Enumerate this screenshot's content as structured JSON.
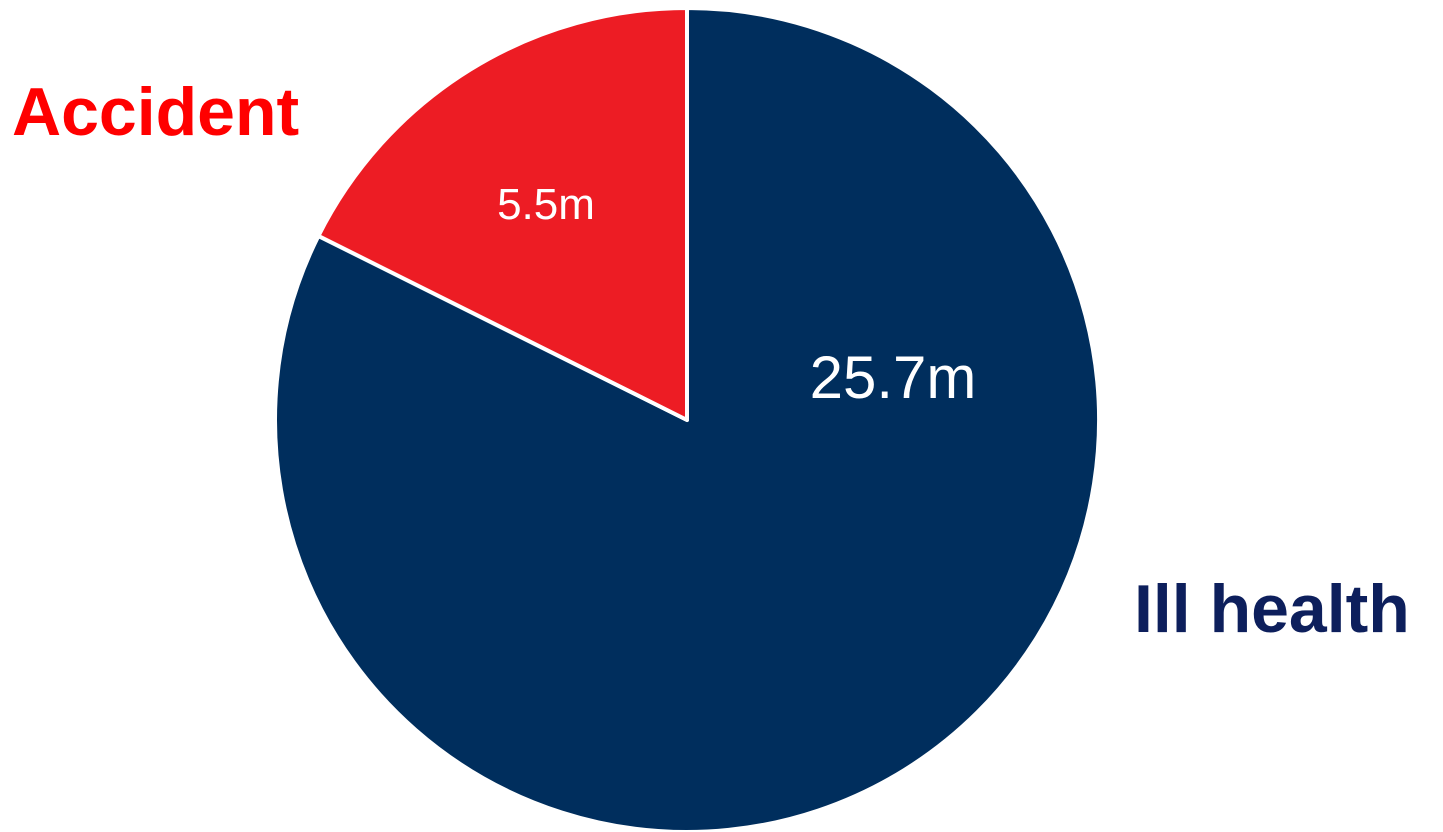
{
  "chart_data": {
    "type": "pie",
    "title": "",
    "unit": "m",
    "categories": [
      "Ill health",
      "Accident"
    ],
    "values": [
      25.7,
      5.5
    ],
    "value_labels": [
      "25.7m",
      "5.5m"
    ],
    "colors": [
      "#002e5d",
      "#ed1c24"
    ],
    "category_label_colors": [
      "#0d1f5c",
      "#ff0000"
    ],
    "legend": "none"
  }
}
